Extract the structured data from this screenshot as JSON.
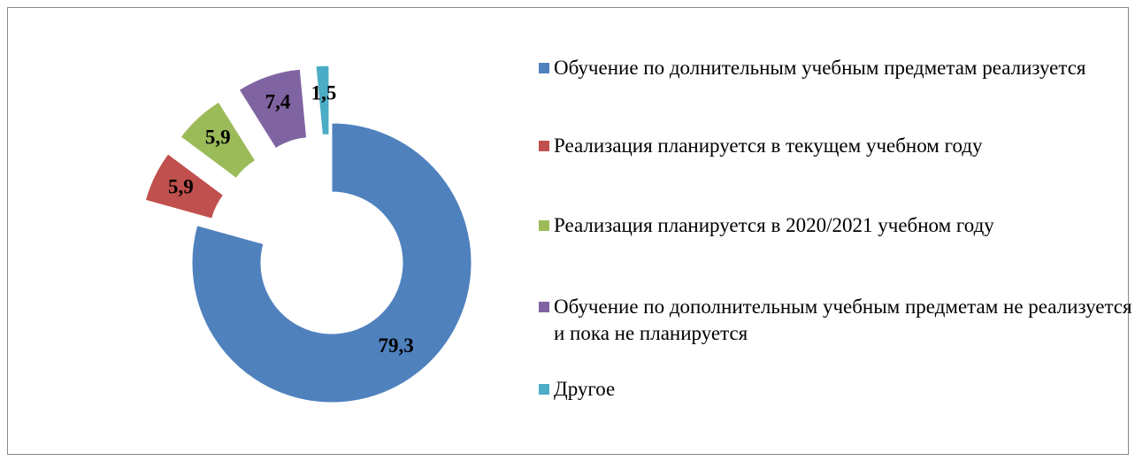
{
  "chart_data": {
    "type": "donut",
    "categories": [
      "Обучение по долнительным учебным предметам реализуется",
      "Реализация планируется в текущем учебном году",
      "Реализация планируется в 2020/2021 учебном году",
      "Обучение по дополнительным учебным предметам не реализуется и пока не планируется",
      "Другое"
    ],
    "values": [
      79.3,
      5.9,
      5.9,
      7.4,
      1.5
    ],
    "value_labels": [
      "79,3",
      "5,9",
      "5,9",
      "7,4",
      "1,5"
    ],
    "colors": [
      "#4f81bd",
      "#c0504d",
      "#9bbb59",
      "#8064a2",
      "#4bacc6"
    ]
  }
}
